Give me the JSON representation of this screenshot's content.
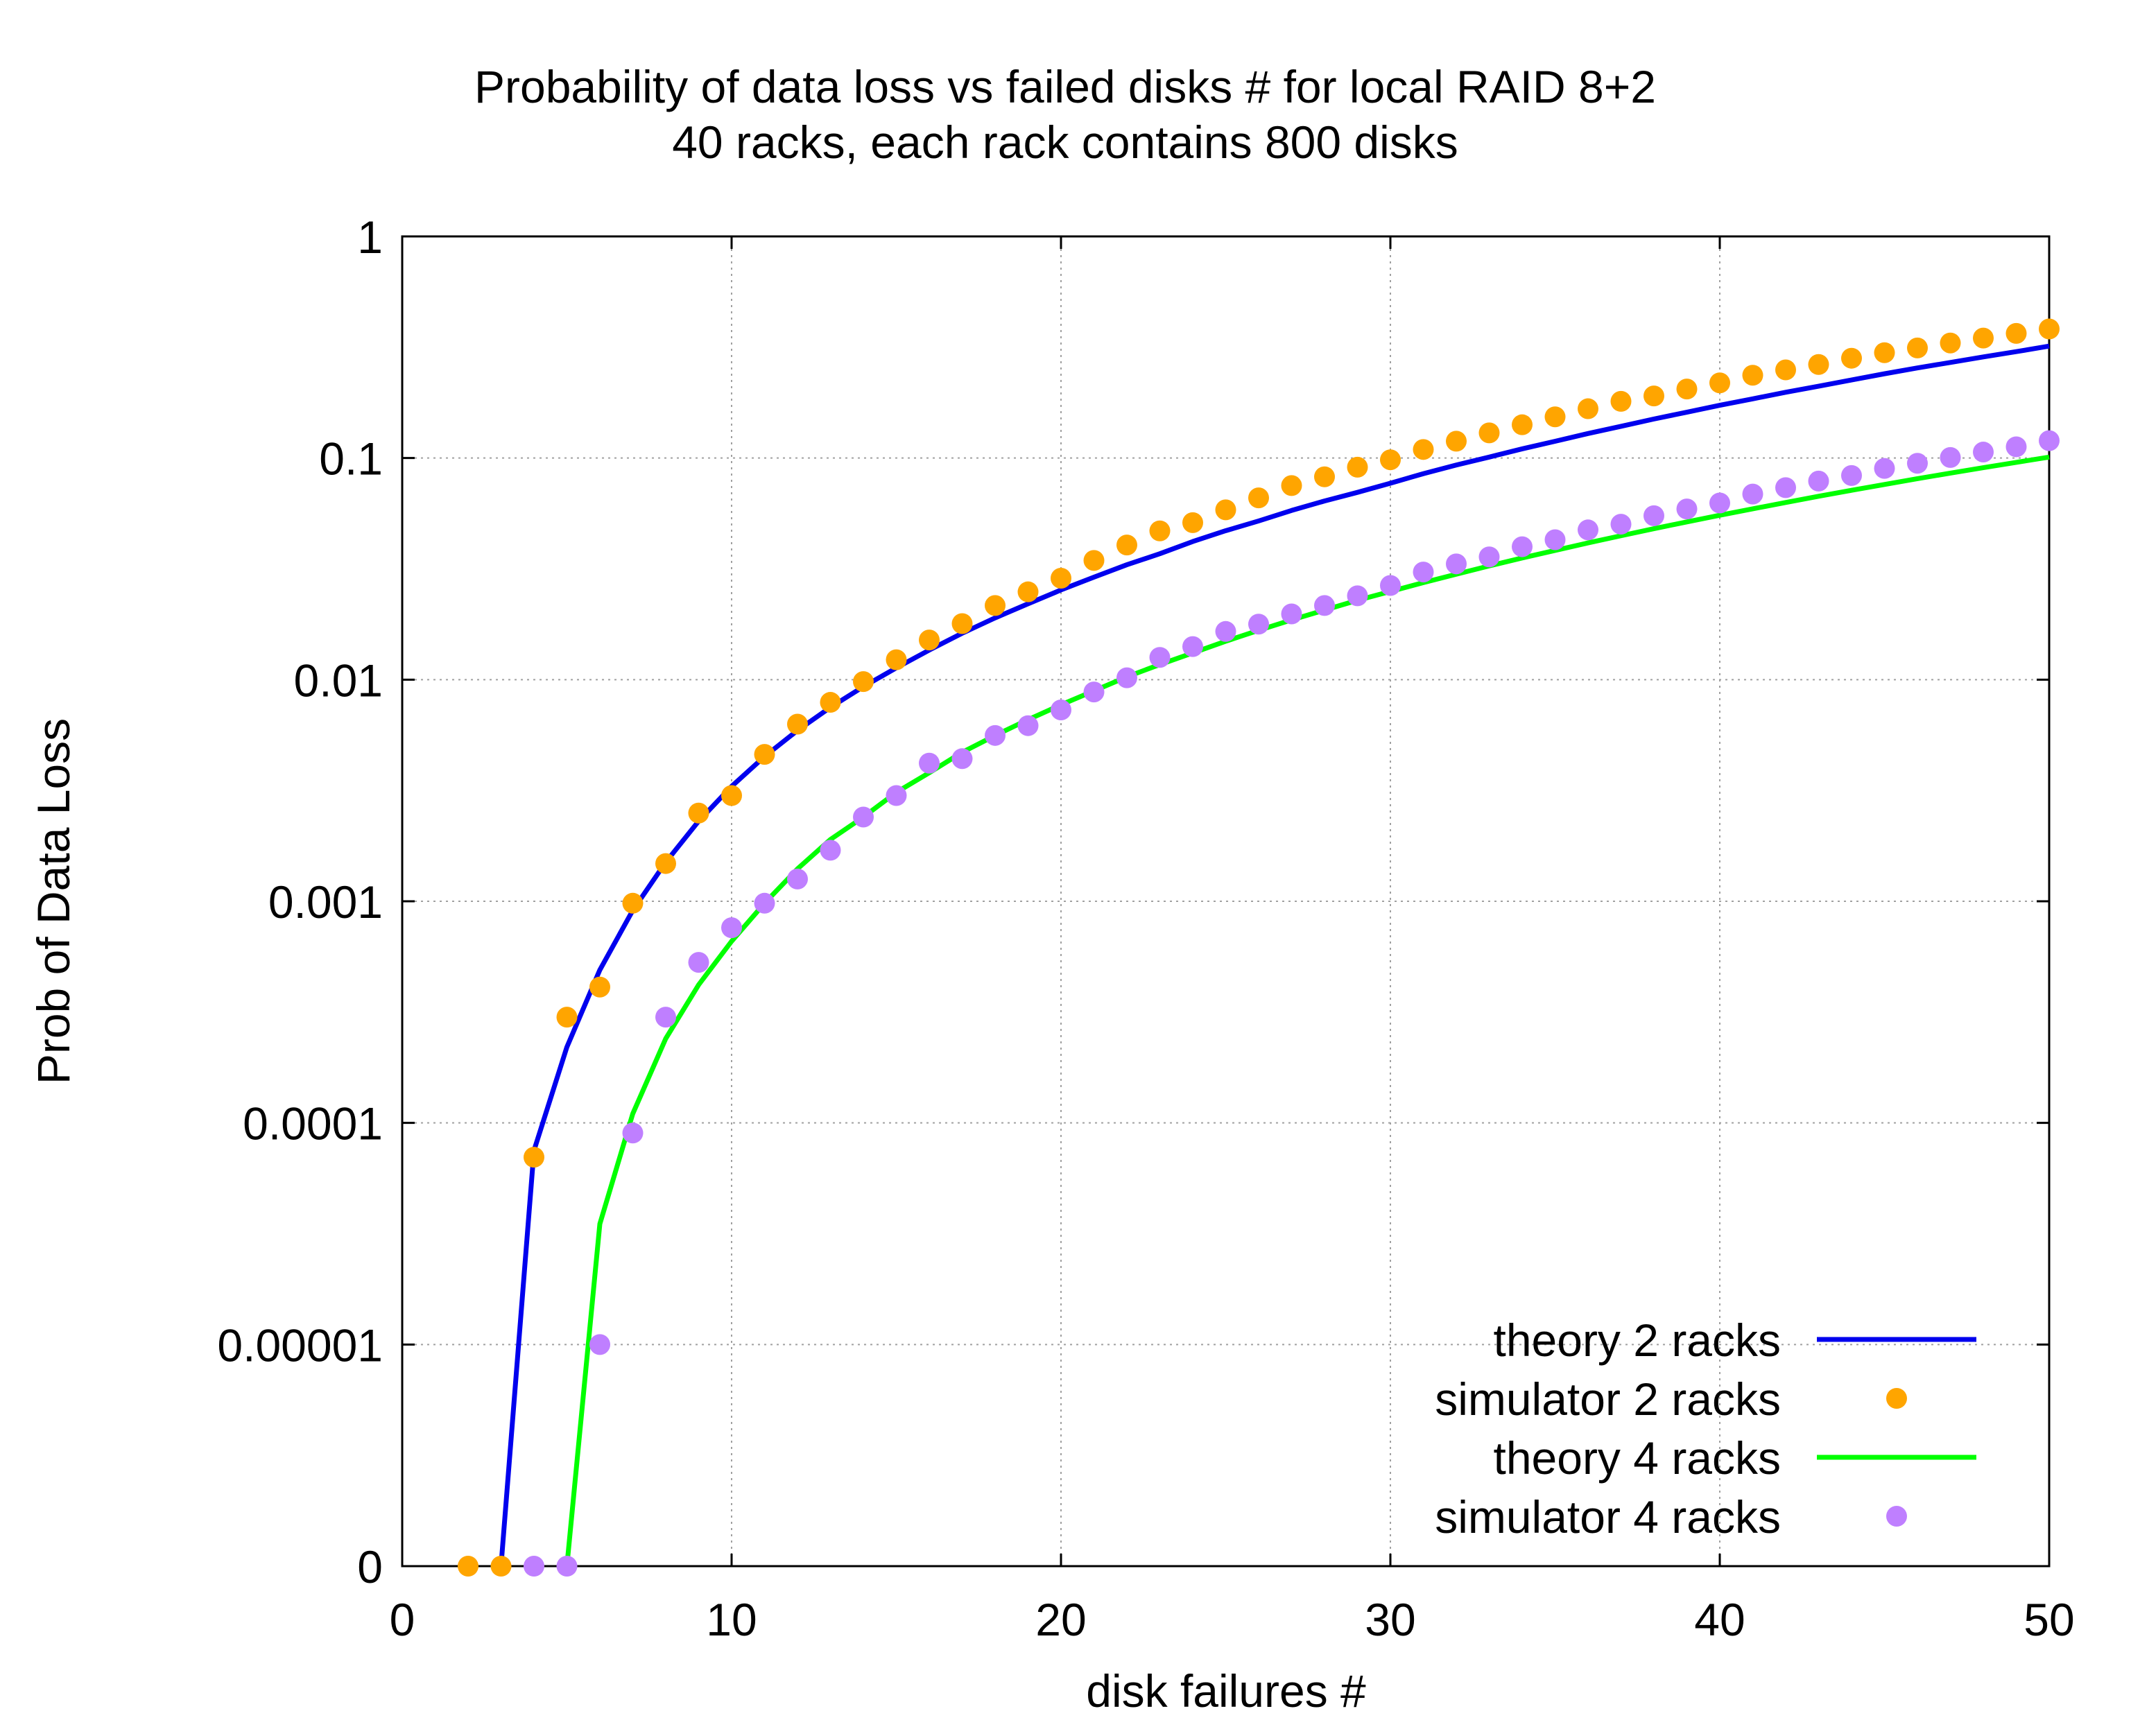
{
  "chart_data": {
    "type": "line",
    "title": "Probability of data loss vs failed disks # for local RAID 8+2",
    "subtitle": "40 racks, each rack contains 800 disks",
    "xlabel": "disk failures #",
    "ylabel": "Prob of Data Loss",
    "xlim": [
      0,
      50
    ],
    "x_ticks": [
      0,
      10,
      20,
      30,
      40,
      50
    ],
    "y_scale": "log (bottom tick labeled 0)",
    "y_ticks": [
      {
        "value": 0,
        "label": "0"
      },
      {
        "value": 1e-05,
        "label": "0.00001"
      },
      {
        "value": 0.0001,
        "label": "0.0001"
      },
      {
        "value": 0.001,
        "label": "0.001"
      },
      {
        "value": 0.01,
        "label": "0.01"
      },
      {
        "value": 0.1,
        "label": "0.1"
      },
      {
        "value": 1,
        "label": "1"
      }
    ],
    "grid": true,
    "legend_position": "bottom-right",
    "series": [
      {
        "name": "theory 2 racks",
        "style": "line",
        "color": "#0000ee",
        "x": [
          3,
          4,
          5,
          6,
          7,
          8,
          9,
          10,
          11,
          12,
          13,
          14,
          15,
          16,
          17,
          18,
          19,
          20,
          21,
          22,
          23,
          24,
          25,
          26,
          27,
          28,
          29,
          30,
          31,
          32,
          33,
          34,
          35,
          36,
          37,
          38,
          39,
          40,
          41,
          42,
          43,
          44,
          45,
          46,
          47,
          48,
          49,
          50
        ],
        "y": [
          0,
          7.5e-05,
          0.00022,
          0.00049,
          0.00091,
          0.0015,
          0.0023,
          0.0033,
          0.0045,
          0.0059,
          0.0075,
          0.0093,
          0.0113,
          0.0136,
          0.0162,
          0.019,
          0.022,
          0.0254,
          0.029,
          0.033,
          0.037,
          0.042,
          0.047,
          0.052,
          0.058,
          0.064,
          0.07,
          0.077,
          0.085,
          0.093,
          0.101,
          0.11,
          0.119,
          0.129,
          0.139,
          0.15,
          0.161,
          0.173,
          0.185,
          0.198,
          0.211,
          0.225,
          0.24,
          0.255,
          0.27,
          0.286,
          0.302,
          0.32
        ]
      },
      {
        "name": "simulator 2 racks",
        "style": "points",
        "color": "#ffa500",
        "x": [
          2,
          3,
          4,
          5,
          6,
          7,
          8,
          9,
          10,
          11,
          12,
          13,
          14,
          15,
          16,
          17,
          18,
          19,
          20,
          21,
          22,
          23,
          24,
          25,
          26,
          27,
          28,
          29,
          30,
          31,
          32,
          33,
          34,
          35,
          36,
          37,
          38,
          39,
          40,
          41,
          42,
          43,
          44,
          45,
          46,
          47,
          48,
          49,
          50
        ],
        "y": [
          0,
          0,
          7e-05,
          0.0003,
          0.00041,
          0.00098,
          0.00148,
          0.0025,
          0.003,
          0.0046,
          0.0063,
          0.0079,
          0.0098,
          0.0123,
          0.0151,
          0.0179,
          0.0216,
          0.0249,
          0.0287,
          0.0345,
          0.0405,
          0.0469,
          0.0511,
          0.0584,
          0.0661,
          0.0751,
          0.0823,
          0.0909,
          0.0982,
          0.1093,
          0.1191,
          0.1299,
          0.1413,
          0.1534,
          0.1669,
          0.1802,
          0.1906,
          0.2048,
          0.2184,
          0.2363,
          0.25,
          0.2642,
          0.2821,
          0.2987,
          0.3138,
          0.3305,
          0.3478,
          0.3651,
          0.3822
        ]
      },
      {
        "name": "theory 4 racks",
        "style": "line",
        "color": "#00ff00",
        "x": [
          5,
          6,
          7,
          8,
          9,
          10,
          11,
          12,
          13,
          14,
          15,
          16,
          17,
          18,
          19,
          20,
          21,
          22,
          23,
          24,
          25,
          26,
          27,
          28,
          29,
          30,
          31,
          32,
          33,
          34,
          35,
          36,
          37,
          38,
          39,
          40,
          41,
          42,
          43,
          44,
          45,
          46,
          47,
          48,
          49,
          50
        ],
        "y": [
          0,
          3.5e-05,
          0.00011,
          0.00024,
          0.00042,
          0.00066,
          0.00098,
          0.0014,
          0.0019,
          0.0024,
          0.0031,
          0.0038,
          0.0047,
          0.0056,
          0.0066,
          0.0077,
          0.0089,
          0.0103,
          0.0117,
          0.0132,
          0.0149,
          0.0167,
          0.0186,
          0.0206,
          0.0228,
          0.025,
          0.0274,
          0.0299,
          0.0326,
          0.0354,
          0.0383,
          0.0414,
          0.0446,
          0.048,
          0.0515,
          0.0552,
          0.059,
          0.063,
          0.0672,
          0.0715,
          0.076,
          0.0807,
          0.0855,
          0.0905,
          0.0956,
          0.101
        ]
      },
      {
        "name": "simulator 4 racks",
        "style": "points",
        "color": "#bf7fff",
        "x": [
          4,
          5,
          6,
          7,
          8,
          9,
          10,
          11,
          12,
          13,
          14,
          15,
          16,
          17,
          18,
          19,
          20,
          21,
          22,
          23,
          24,
          25,
          26,
          27,
          28,
          29,
          30,
          31,
          32,
          33,
          34,
          35,
          36,
          37,
          38,
          39,
          40,
          41,
          42,
          43,
          44,
          45,
          46,
          47,
          48,
          49,
          50
        ],
        "y": [
          0,
          0,
          1e-05,
          9e-05,
          0.0003,
          0.00053,
          0.00076,
          0.00098,
          0.00126,
          0.0017,
          0.0024,
          0.003,
          0.0042,
          0.0044,
          0.0056,
          0.0062,
          0.0073,
          0.0088,
          0.0102,
          0.0126,
          0.0141,
          0.0165,
          0.0178,
          0.0198,
          0.0216,
          0.0239,
          0.0266,
          0.0306,
          0.0333,
          0.0358,
          0.0398,
          0.0428,
          0.0474,
          0.0503,
          0.0549,
          0.0589,
          0.0627,
          0.0688,
          0.0735,
          0.0787,
          0.0834,
          0.0898,
          0.0947,
          0.1006,
          0.1064,
          0.1124,
          0.1198
        ]
      }
    ]
  }
}
